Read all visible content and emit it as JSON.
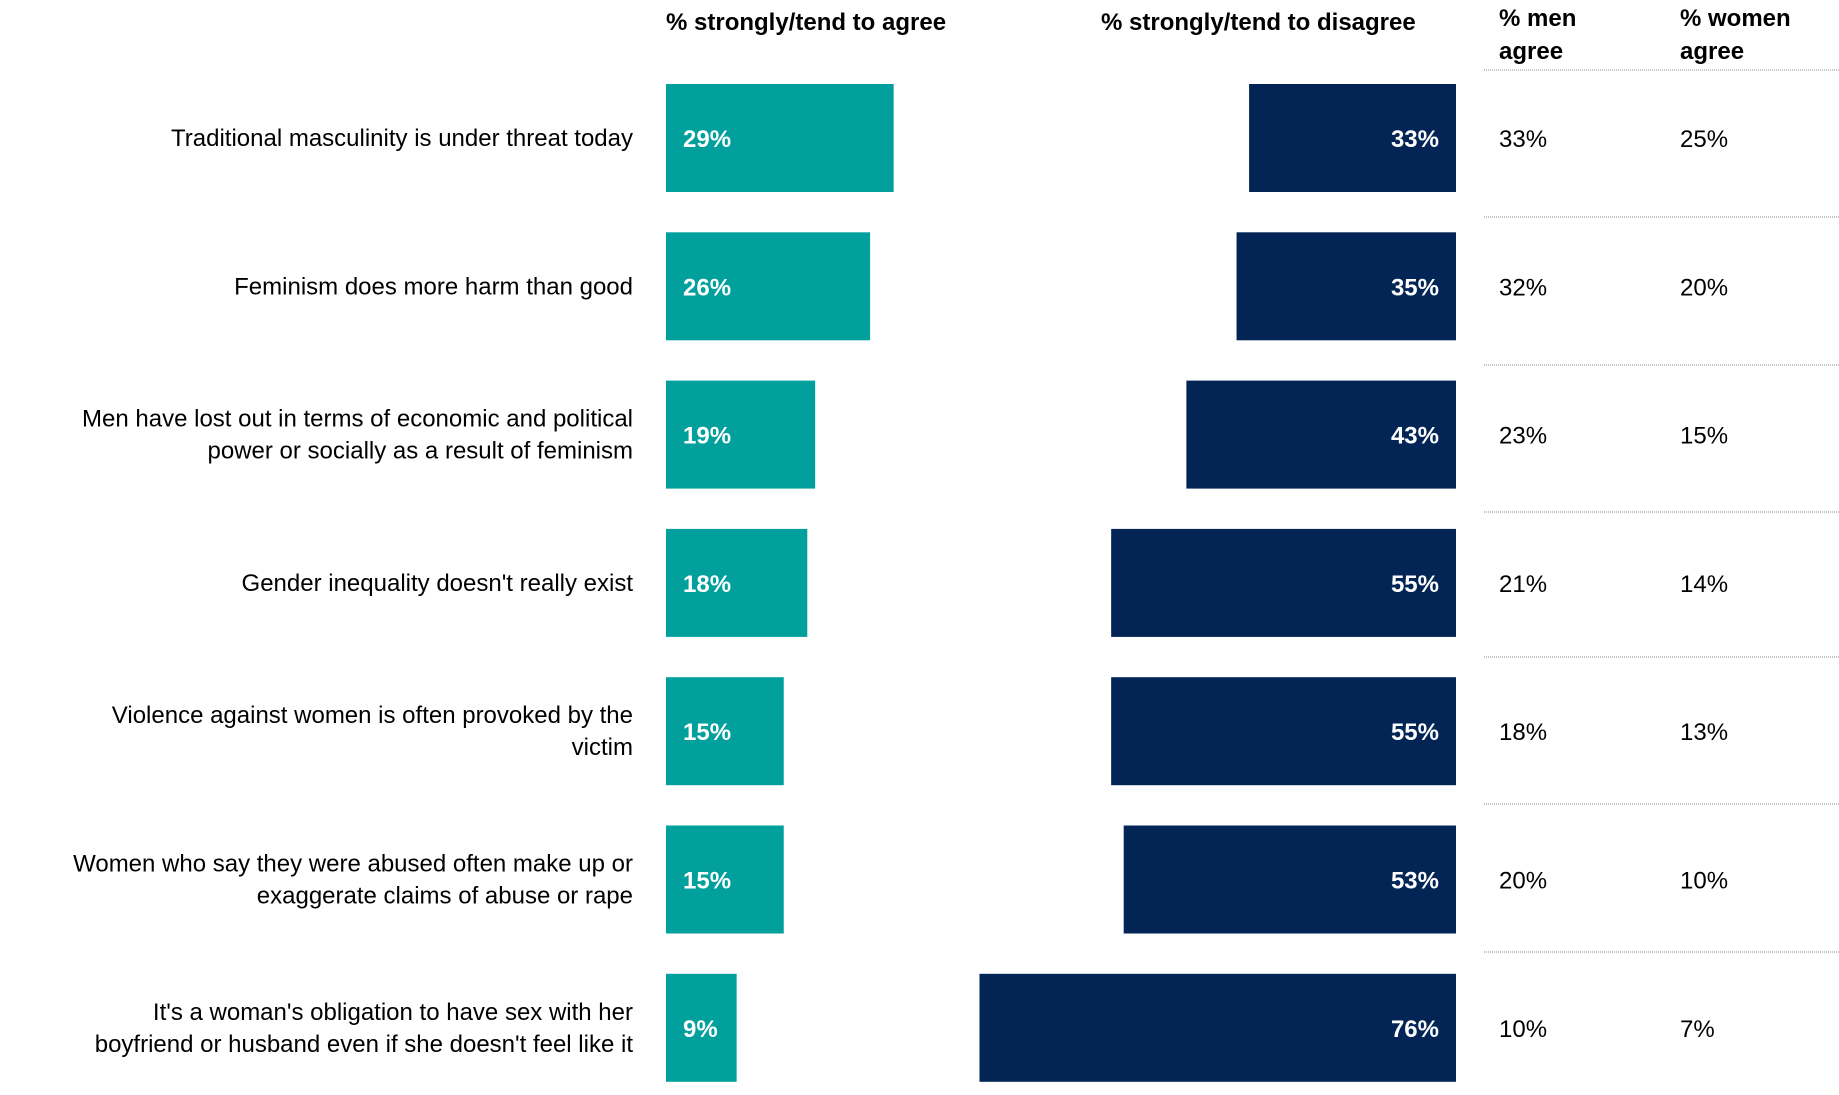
{
  "headers": {
    "agree": "% strongly/tend to agree",
    "disagree": "% strongly/tend to disagree",
    "men": [
      "% men",
      "agree"
    ],
    "women": [
      "% women",
      "agree"
    ]
  },
  "colors": {
    "agree": "#02a09d",
    "disagree": "#022556",
    "divider": "#8a8a8a"
  },
  "chart_data": {
    "type": "bar",
    "categories": [
      [
        "Traditional masculinity is under threat today"
      ],
      [
        "Feminism does more harm than good"
      ],
      [
        "Men have lost out in terms of economic and political",
        "power or socially as a result of feminism"
      ],
      [
        "Gender inequality doesn't really exist"
      ],
      [
        "Violence against women is often provoked by the",
        "victim"
      ],
      [
        "Women who say they were abused often make up or",
        "exaggerate claims of abuse or rape"
      ],
      [
        "It's a woman's obligation to have sex with her",
        "boyfriend or husband even if she doesn't feel like it"
      ]
    ],
    "series": [
      {
        "name": "% strongly/tend to agree",
        "values": [
          29,
          26,
          19,
          18,
          15,
          15,
          9
        ],
        "labels": [
          "29%",
          "26%",
          "19%",
          "18%",
          "15%",
          "15%",
          "9%"
        ]
      },
      {
        "name": "% strongly/tend to disagree",
        "values": [
          33,
          35,
          43,
          55,
          55,
          53,
          76
        ],
        "labels": [
          "33%",
          "35%",
          "43%",
          "55%",
          "55%",
          "53%",
          "76%"
        ]
      }
    ],
    "table": {
      "men_agree": [
        "33%",
        "32%",
        "23%",
        "21%",
        "18%",
        "20%",
        "10%"
      ],
      "women_agree": [
        "25%",
        "20%",
        "15%",
        "14%",
        "13%",
        "10%",
        "7%"
      ]
    },
    "unit": "%",
    "grid": false
  }
}
